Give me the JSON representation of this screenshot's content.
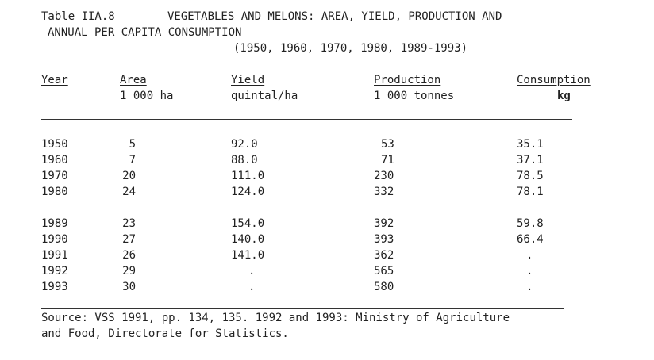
{
  "title": {
    "label": "Table IIA.8",
    "heading_line1": "VEGETABLES AND MELONS: AREA, YIELD, PRODUCTION AND",
    "heading_line2": "ANNUAL PER CAPITA CONSUMPTION",
    "years": "(1950, 1960, 1970, 1980, 1989-1993)"
  },
  "headers": {
    "year": "Year",
    "area": "Area",
    "area_unit": "1 000 ha",
    "yield": "Yield",
    "yield_unit": "quintal/ha",
    "production": "Production",
    "production_unit": "1 000 tonnes",
    "consumption": "Consumption",
    "consumption_unit": "kg"
  },
  "group1": [
    {
      "year": "1950",
      "area": "5",
      "yield": "92.0",
      "production": "53",
      "consumption": "35.1"
    },
    {
      "year": "1960",
      "area": "7",
      "yield": "88.0",
      "production": "71",
      "consumption": "37.1"
    },
    {
      "year": "1970",
      "area": "20",
      "yield": "111.0",
      "production": "230",
      "consumption": "78.5"
    },
    {
      "year": "1980",
      "area": "24",
      "yield": "124.0",
      "production": "332",
      "consumption": "78.1"
    }
  ],
  "group2": [
    {
      "year": "1989",
      "area": "23",
      "yield": "154.0",
      "production": "392",
      "consumption": "59.8"
    },
    {
      "year": "1990",
      "area": "27",
      "yield": "140.0",
      "production": "393",
      "consumption": "66.4"
    },
    {
      "year": "1991",
      "area": "26",
      "yield": "141.0",
      "production": "362",
      "consumption": "."
    },
    {
      "year": "1992",
      "area": "29",
      "yield": ".",
      "production": "565",
      "consumption": "."
    },
    {
      "year": "1993",
      "area": "30",
      "yield": ".",
      "production": "580",
      "consumption": "."
    }
  ],
  "source": {
    "line1": "Source: VSS 1991, pp. 134, 135. 1992 and 1993: Ministry of Agriculture",
    "line2": "and Food, Directorate for Statistics."
  }
}
